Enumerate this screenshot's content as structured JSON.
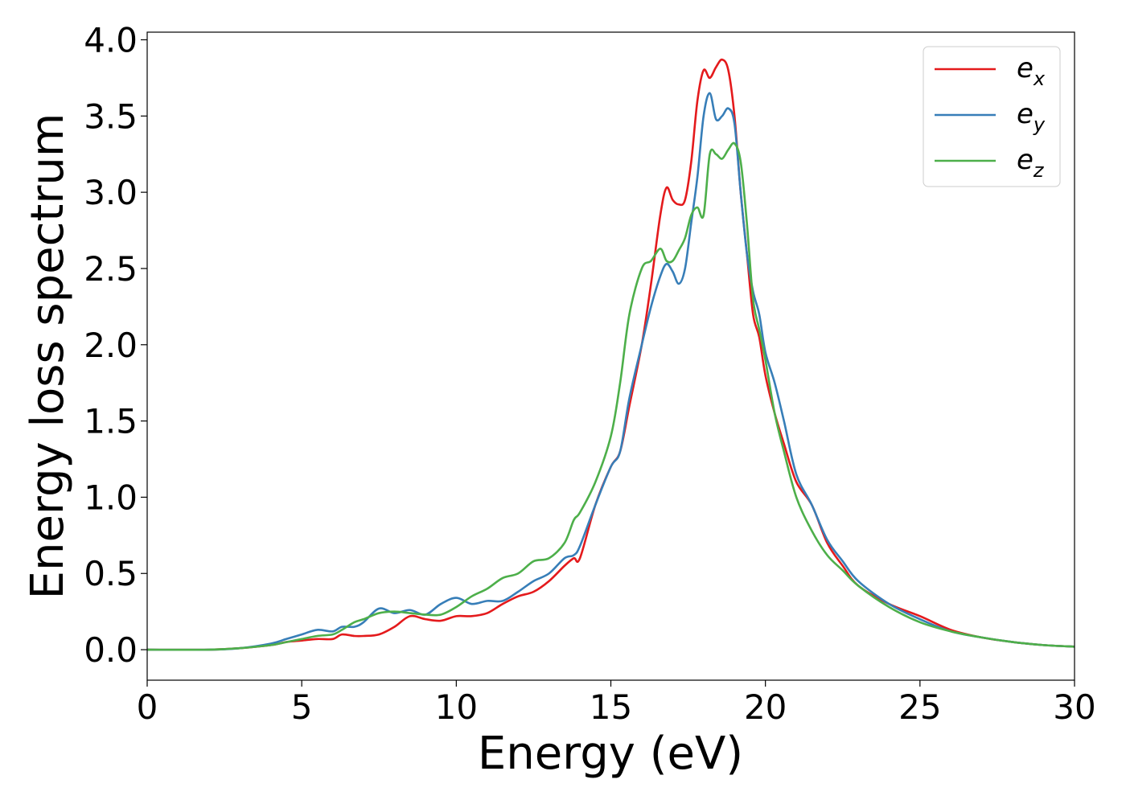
{
  "chart_data": {
    "type": "line",
    "title": "",
    "xlabel": "Energy (eV)",
    "ylabel": "Energy loss spectrum",
    "xlim": [
      0,
      30
    ],
    "ylim": [
      -0.2,
      4.05
    ],
    "xticks": [
      0,
      5,
      10,
      15,
      20,
      25,
      30
    ],
    "xtick_labels": [
      "0",
      "5",
      "10",
      "15",
      "20",
      "25",
      "30"
    ],
    "yticks": [
      0.0,
      0.5,
      1.0,
      1.5,
      2.0,
      2.5,
      3.0,
      3.5,
      4.0
    ],
    "ytick_labels": [
      "0.0",
      "0.5",
      "1.0",
      "1.5",
      "2.0",
      "2.5",
      "3.0",
      "3.5",
      "4.0"
    ],
    "grid": false,
    "legend_position": "top-right",
    "series": [
      {
        "name": "e_x",
        "label_base": "e",
        "label_sub": "x",
        "color": "#e41a1c",
        "x": [
          0,
          2,
          3,
          4,
          4.5,
          5,
          5.5,
          6,
          6.3,
          6.7,
          7,
          7.5,
          8,
          8.5,
          9,
          9.5,
          10,
          10.5,
          11,
          11.5,
          12,
          12.5,
          13,
          13.5,
          13.8,
          14,
          14.5,
          15,
          15.3,
          15.6,
          16,
          16.3,
          16.6,
          16.8,
          17,
          17.2,
          17.4,
          17.6,
          17.8,
          18,
          18.2,
          18.4,
          18.6,
          18.8,
          19,
          19.2,
          19.4,
          19.6,
          19.8,
          20,
          20.3,
          20.6,
          21,
          21.5,
          22,
          22.5,
          23,
          24,
          25,
          26,
          27,
          28,
          29,
          30
        ],
        "y": [
          0,
          0,
          0.01,
          0.03,
          0.05,
          0.06,
          0.07,
          0.07,
          0.1,
          0.09,
          0.09,
          0.1,
          0.15,
          0.22,
          0.2,
          0.19,
          0.22,
          0.22,
          0.24,
          0.3,
          0.35,
          0.38,
          0.45,
          0.55,
          0.6,
          0.6,
          0.95,
          1.2,
          1.3,
          1.6,
          2.0,
          2.4,
          2.85,
          3.03,
          2.95,
          2.92,
          2.95,
          3.2,
          3.6,
          3.8,
          3.75,
          3.82,
          3.87,
          3.8,
          3.5,
          3.0,
          2.6,
          2.2,
          2.05,
          1.8,
          1.55,
          1.35,
          1.1,
          0.95,
          0.7,
          0.55,
          0.42,
          0.3,
          0.22,
          0.13,
          0.08,
          0.05,
          0.03,
          0.02
        ]
      },
      {
        "name": "e_y",
        "label_base": "e",
        "label_sub": "y",
        "color": "#377eb8",
        "x": [
          0,
          2,
          3,
          4,
          4.5,
          5,
          5.5,
          6,
          6.3,
          6.7,
          7,
          7.5,
          8,
          8.5,
          9,
          9.5,
          10,
          10.5,
          11,
          11.5,
          12,
          12.5,
          13,
          13.5,
          13.8,
          14,
          14.5,
          15,
          15.3,
          15.6,
          16,
          16.3,
          16.6,
          16.8,
          17,
          17.2,
          17.4,
          17.6,
          17.8,
          18,
          18.2,
          18.4,
          18.6,
          18.8,
          19,
          19.2,
          19.4,
          19.6,
          19.8,
          20,
          20.3,
          20.6,
          21,
          21.5,
          22,
          22.5,
          23,
          24,
          25,
          26,
          27,
          28,
          29,
          30
        ],
        "y": [
          0,
          0,
          0.01,
          0.04,
          0.07,
          0.1,
          0.13,
          0.12,
          0.15,
          0.15,
          0.18,
          0.27,
          0.24,
          0.26,
          0.23,
          0.3,
          0.34,
          0.3,
          0.32,
          0.32,
          0.38,
          0.45,
          0.5,
          0.6,
          0.62,
          0.68,
          0.95,
          1.2,
          1.3,
          1.65,
          2.0,
          2.25,
          2.45,
          2.53,
          2.48,
          2.4,
          2.5,
          2.8,
          3.1,
          3.5,
          3.65,
          3.48,
          3.5,
          3.55,
          3.45,
          3.0,
          2.6,
          2.35,
          2.2,
          1.95,
          1.75,
          1.5,
          1.15,
          0.95,
          0.72,
          0.58,
          0.45,
          0.3,
          0.2,
          0.12,
          0.08,
          0.05,
          0.03,
          0.02
        ]
      },
      {
        "name": "e_z",
        "label_base": "e",
        "label_sub": "z",
        "color": "#4daf4a",
        "x": [
          0,
          2,
          3,
          4,
          4.5,
          5,
          5.5,
          6,
          6.3,
          6.7,
          7,
          7.5,
          8,
          8.5,
          9,
          9.5,
          10,
          10.5,
          11,
          11.5,
          12,
          12.5,
          13,
          13.5,
          13.8,
          14,
          14.5,
          15,
          15.3,
          15.6,
          16,
          16.3,
          16.6,
          16.8,
          17,
          17.2,
          17.4,
          17.6,
          17.8,
          18,
          18.2,
          18.4,
          18.6,
          18.8,
          19,
          19.2,
          19.4,
          19.6,
          19.8,
          20,
          20.3,
          20.6,
          21,
          21.5,
          22,
          22.5,
          23,
          24,
          25,
          26,
          27,
          28,
          29,
          30
        ],
        "y": [
          0,
          0,
          0.01,
          0.03,
          0.05,
          0.07,
          0.09,
          0.1,
          0.13,
          0.18,
          0.2,
          0.24,
          0.25,
          0.24,
          0.23,
          0.23,
          0.28,
          0.35,
          0.4,
          0.47,
          0.5,
          0.58,
          0.6,
          0.7,
          0.85,
          0.9,
          1.1,
          1.4,
          1.75,
          2.2,
          2.5,
          2.55,
          2.63,
          2.55,
          2.55,
          2.62,
          2.7,
          2.85,
          2.9,
          2.85,
          3.25,
          3.25,
          3.22,
          3.28,
          3.32,
          3.2,
          2.8,
          2.3,
          2.1,
          1.9,
          1.55,
          1.3,
          1.0,
          0.78,
          0.62,
          0.52,
          0.42,
          0.28,
          0.18,
          0.12,
          0.08,
          0.05,
          0.03,
          0.02
        ]
      }
    ]
  }
}
